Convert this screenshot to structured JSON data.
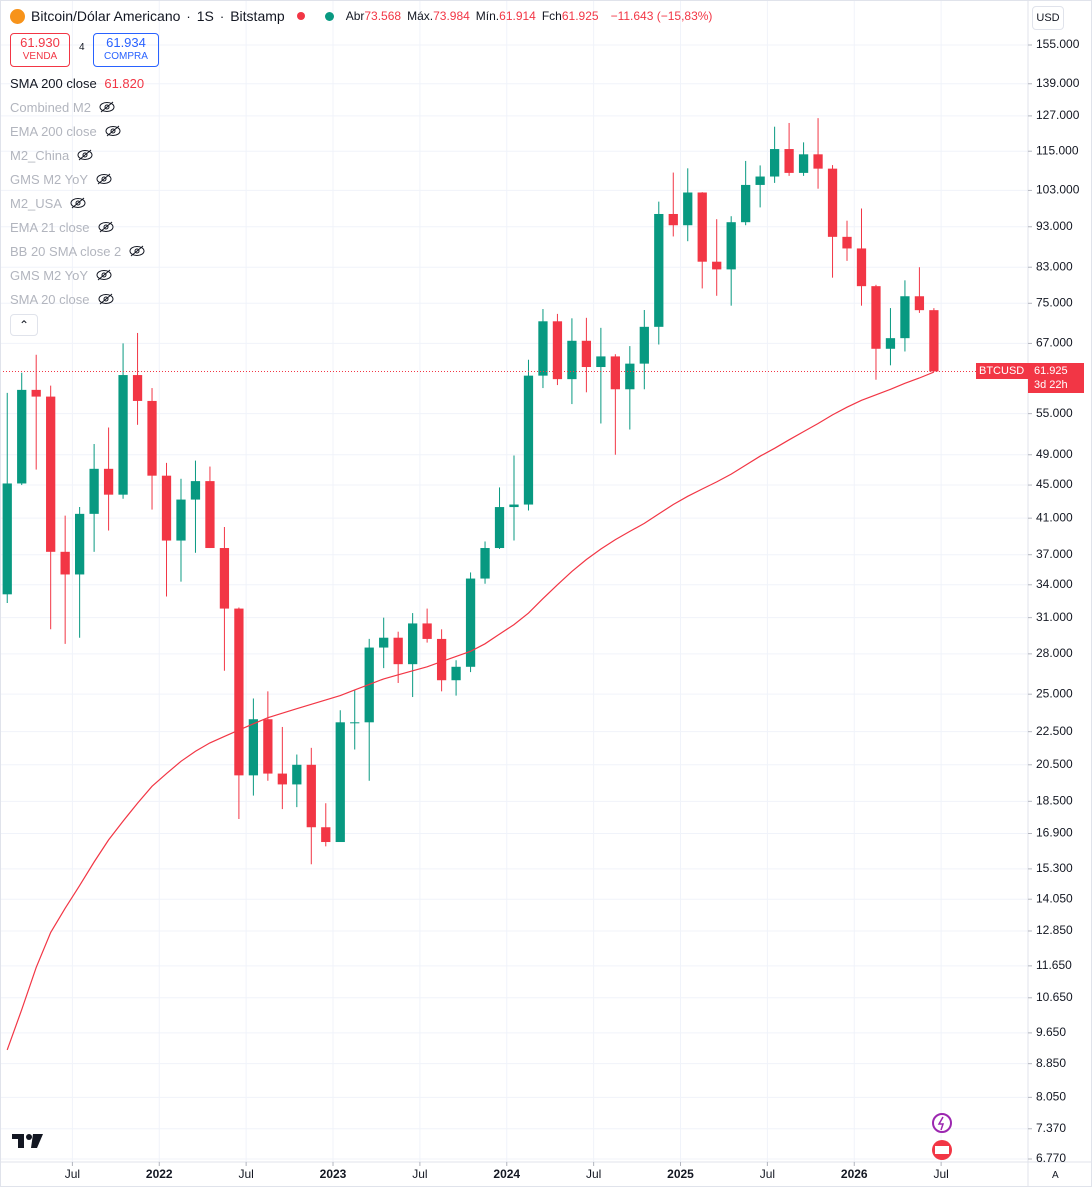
{
  "chart_data": {
    "type": "candlestick",
    "title": "Bitcoin/Dólar Americano",
    "interval": "1S",
    "exchange": "Bitstamp",
    "ohlc": [
      {
        "label": "Abr",
        "value": "73.568"
      },
      {
        "label": "Máx.",
        "value": "73.984"
      },
      {
        "label": "Mín.",
        "value": "61.914"
      },
      {
        "label": "Fch",
        "value": "61.925"
      }
    ],
    "change": "−11.643 (−15,83%)",
    "sell": {
      "price": "61.930",
      "label": "VENDA"
    },
    "spread": "4",
    "buy": {
      "price": "61.934",
      "label": "COMPRA"
    },
    "currency": "USD",
    "auto_label": "A",
    "hidden_indicators": [
      "Combined M2",
      "EMA 200 close",
      "M2_China",
      "GMS M2 YoY",
      "M2_USA",
      "EMA 21 close",
      "BB 20 SMA close 2",
      "GMS M2 YoY",
      "SMA 20 close"
    ],
    "last_price": {
      "symbol": "BTCUSD",
      "label": "61.925",
      "countdown": "3d 22h"
    },
    "up_color": "#089981",
    "down_color": "#f23645",
    "log_scale": true,
    "grid": true,
    "x": [
      "2021-02",
      "2021-03",
      "2021-04",
      "2021-05",
      "2021-06",
      "2021-07",
      "2021-08",
      "2021-09",
      "2021-10",
      "2021-11",
      "2021-12",
      "2022-01",
      "2022-02",
      "2022-03",
      "2022-04",
      "2022-05",
      "2022-06",
      "2022-07",
      "2022-08",
      "2022-09",
      "2022-10",
      "2022-11",
      "2022-12",
      "2023-01",
      "2023-02",
      "2023-03",
      "2023-04",
      "2023-05",
      "2023-06",
      "2023-07",
      "2023-08",
      "2023-09",
      "2023-10",
      "2023-11",
      "2023-12",
      "2024-01",
      "2024-02",
      "2024-03",
      "2024-04",
      "2024-05",
      "2024-06",
      "2024-07",
      "2024-08",
      "2024-09",
      "2024-10",
      "2024-11",
      "2024-12",
      "2025-01",
      "2025-02",
      "2025-03",
      "2025-04",
      "2025-05",
      "2025-06",
      "2025-07",
      "2025-08",
      "2025-09",
      "2025-10",
      "2025-11",
      "2025-12",
      "2026-01",
      "2026-02",
      "2026-03",
      "2026-04",
      "2026-05",
      "2026-06"
    ],
    "open": [
      33100,
      45200,
      58800,
      57700,
      37300,
      35000,
      41500,
      47100,
      43800,
      61300,
      57000,
      46200,
      38500,
      43200,
      45500,
      37700,
      31800,
      19900,
      23300,
      20000,
      19400,
      20500,
      17200,
      16500,
      23100,
      23100,
      28500,
      29300,
      27200,
      30500,
      29200,
      26000,
      27000,
      34600,
      37700,
      42300,
      42600,
      61200,
      71300,
      60600,
      67500,
      62700,
      64600,
      58900,
      63300,
      70200,
      96400,
      93400,
      102400,
      84300,
      82500,
      94200,
      104600,
      107100,
      115700,
      108200,
      114000,
      109500,
      90400,
      87500,
      78700,
      66000,
      68000,
      76500,
      73568
    ],
    "high": [
      58300,
      61700,
      64900,
      59500,
      41300,
      42300,
      50500,
      52900,
      67000,
      69000,
      59100,
      47900,
      45800,
      48200,
      47400,
      40000,
      31900,
      24700,
      25200,
      22800,
      21100,
      21500,
      18400,
      23900,
      25300,
      29200,
      31000,
      29800,
      31400,
      31800,
      30000,
      27500,
      35200,
      38400,
      44700,
      48900,
      64000,
      73800,
      72800,
      71900,
      72000,
      70000,
      65000,
      66500,
      73600,
      99800,
      108300,
      109600,
      102500,
      95000,
      95800,
      111900,
      110500,
      123200,
      124500,
      117900,
      126200,
      110600,
      94600,
      97900,
      79000,
      74000,
      80000,
      83000,
      73984
    ],
    "low": [
      32300,
      45000,
      47000,
      30000,
      28800,
      29300,
      37300,
      39600,
      43300,
      53300,
      42000,
      32900,
      34300,
      37200,
      37700,
      26700,
      17600,
      18800,
      19600,
      18100,
      18200,
      15500,
      16300,
      16500,
      21400,
      19600,
      26900,
      25800,
      24800,
      28900,
      25200,
      24900,
      26600,
      34100,
      37600,
      38500,
      41900,
      59100,
      59600,
      56500,
      58400,
      53500,
      49000,
      52600,
      58900,
      66800,
      90500,
      89300,
      78200,
      76600,
      74500,
      93400,
      98200,
      105200,
      107300,
      107300,
      103500,
      80600,
      84500,
      74500,
      60500,
      63000,
      65500,
      73000,
      61914
    ],
    "close": [
      45200,
      58800,
      57700,
      37300,
      35000,
      41500,
      47100,
      43800,
      61300,
      57000,
      46200,
      38500,
      43200,
      45500,
      37700,
      31800,
      19900,
      23300,
      20000,
      19400,
      20500,
      17200,
      16500,
      23100,
      23100,
      28500,
      29300,
      27200,
      30500,
      29200,
      26000,
      27000,
      34600,
      37700,
      42300,
      42600,
      61200,
      71300,
      60600,
      67500,
      62700,
      64600,
      58900,
      63300,
      70200,
      96400,
      93400,
      102400,
      84300,
      82500,
      94200,
      104600,
      107100,
      115700,
      108200,
      114000,
      109500,
      90400,
      87500,
      78700,
      66000,
      68000,
      76500,
      73568,
      61925
    ],
    "series": [
      {
        "name": "SMA 200 close",
        "color": "#f23645",
        "last_label": "61.820",
        "values": [
          9200,
          10300,
          11600,
          12800,
          13700,
          14600,
          15600,
          16600,
          17500,
          18400,
          19300,
          20000,
          20700,
          21300,
          21800,
          22200,
          22600,
          23000,
          23400,
          23700,
          24000,
          24300,
          24600,
          24900,
          25300,
          25700,
          26100,
          26400,
          26700,
          27000,
          27400,
          27800,
          28200,
          28800,
          29600,
          30400,
          31400,
          32700,
          34000,
          35300,
          36500,
          37600,
          38600,
          39500,
          40400,
          41500,
          42600,
          43600,
          44500,
          45400,
          46400,
          47600,
          48800,
          49900,
          51100,
          52300,
          53500,
          54800,
          56000,
          57100,
          58000,
          58900,
          59900,
          60800,
          61820
        ]
      }
    ],
    "xlim": [
      "2021-02",
      "2027-01"
    ],
    "xticks": [
      {
        "value": "2021-07",
        "label": "Jul"
      },
      {
        "value": "2022-01",
        "label": "2022"
      },
      {
        "value": "2022-07",
        "label": "Jul"
      },
      {
        "value": "2023-01",
        "label": "2023"
      },
      {
        "value": "2023-07",
        "label": "Jul"
      },
      {
        "value": "2024-01",
        "label": "2024"
      },
      {
        "value": "2024-07",
        "label": "Jul"
      },
      {
        "value": "2025-01",
        "label": "2025"
      },
      {
        "value": "2025-07",
        "label": "Jul"
      },
      {
        "value": "2026-01",
        "label": "2026"
      },
      {
        "value": "2026-07",
        "label": "Jul"
      }
    ],
    "ylim": [
      6713,
      175900
    ],
    "yticks": [
      {
        "value": 155000,
        "label": "155.000"
      },
      {
        "value": 139000,
        "label": "139.000"
      },
      {
        "value": 127000,
        "label": "127.000"
      },
      {
        "value": 115000,
        "label": "115.000"
      },
      {
        "value": 103000,
        "label": "103.000"
      },
      {
        "value": 93000,
        "label": "93.000"
      },
      {
        "value": 83000,
        "label": "83.000"
      },
      {
        "value": 75000,
        "label": "75.000"
      },
      {
        "value": 67000,
        "label": "67.000"
      },
      {
        "value": 55000,
        "label": "55.000"
      },
      {
        "value": 49000,
        "label": "49.000"
      },
      {
        "value": 45000,
        "label": "45.000"
      },
      {
        "value": 41000,
        "label": "41.000"
      },
      {
        "value": 37000,
        "label": "37.000"
      },
      {
        "value": 34000,
        "label": "34.000"
      },
      {
        "value": 31000,
        "label": "31.000"
      },
      {
        "value": 28000,
        "label": "28.000"
      },
      {
        "value": 25000,
        "label": "25.000"
      },
      {
        "value": 22500,
        "label": "22.500"
      },
      {
        "value": 20500,
        "label": "20.500"
      },
      {
        "value": 18500,
        "label": "18.500"
      },
      {
        "value": 16900,
        "label": "16.900"
      },
      {
        "value": 15300,
        "label": "15.300"
      },
      {
        "value": 14050,
        "label": "14.050"
      },
      {
        "value": 12850,
        "label": "12.850"
      },
      {
        "value": 11650,
        "label": "11.650"
      },
      {
        "value": 10650,
        "label": "10.650"
      },
      {
        "value": 9650,
        "label": "9.650"
      },
      {
        "value": 8850,
        "label": "8.850"
      },
      {
        "value": 8050,
        "label": "8.050"
      },
      {
        "value": 7370,
        "label": "7.370"
      },
      {
        "value": 6770,
        "label": "6.770"
      }
    ]
  }
}
